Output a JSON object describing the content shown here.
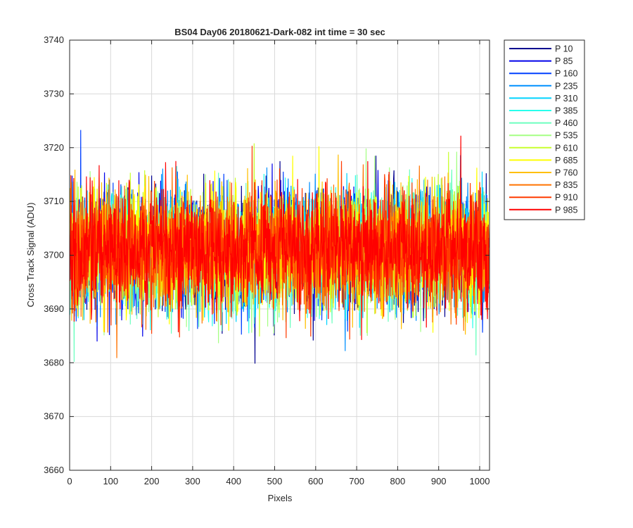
{
  "chart_data": {
    "type": "line",
    "title": "BS04 Day06 20180621-Dark-082 int time = 30 sec",
    "xlabel": "Pixels",
    "ylabel": "Cross Track Signal (ADU)",
    "xlim": [
      0,
      1024
    ],
    "ylim": [
      3660,
      3740
    ],
    "xticks": [
      0,
      100,
      200,
      300,
      400,
      500,
      600,
      700,
      800,
      900,
      1000
    ],
    "yticks": [
      3660,
      3670,
      3680,
      3690,
      3700,
      3710,
      3720,
      3730,
      3740
    ],
    "grid": true,
    "legend_position": "outside-top-right",
    "points_per_series": 1024,
    "series": [
      {
        "name": "P 10",
        "color": "#00008f",
        "mean": 3701,
        "spread": 5.3
      },
      {
        "name": "P 85",
        "color": "#0000ea",
        "mean": 3701,
        "spread": 5.3
      },
      {
        "name": "P 160",
        "color": "#0040ff",
        "mean": 3701,
        "spread": 5.3
      },
      {
        "name": "P 235",
        "color": "#0090ff",
        "mean": 3701,
        "spread": 5.3
      },
      {
        "name": "P 310",
        "color": "#00d4ff",
        "mean": 3701,
        "spread": 5.3
      },
      {
        "name": "P 385",
        "color": "#28ffec",
        "mean": 3701,
        "spread": 5.3
      },
      {
        "name": "P 460",
        "color": "#6cffbf",
        "mean": 3701,
        "spread": 5.3
      },
      {
        "name": "P 535",
        "color": "#a5ff84",
        "mean": 3701,
        "spread": 5.3
      },
      {
        "name": "P 610",
        "color": "#c8ff2e",
        "mean": 3701,
        "spread": 5.3
      },
      {
        "name": "P 685",
        "color": "#ffff00",
        "mean": 3701,
        "spread": 5.3
      },
      {
        "name": "P 760",
        "color": "#ffbf00",
        "mean": 3701,
        "spread": 5.3
      },
      {
        "name": "P 835",
        "color": "#ff7300",
        "mean": 3701,
        "spread": 5.3
      },
      {
        "name": "P 910",
        "color": "#ff3b00",
        "mean": 3701,
        "spread": 5.3
      },
      {
        "name": "P 985",
        "color": "#ff0000",
        "mean": 3701,
        "spread": 5.3
      }
    ]
  }
}
